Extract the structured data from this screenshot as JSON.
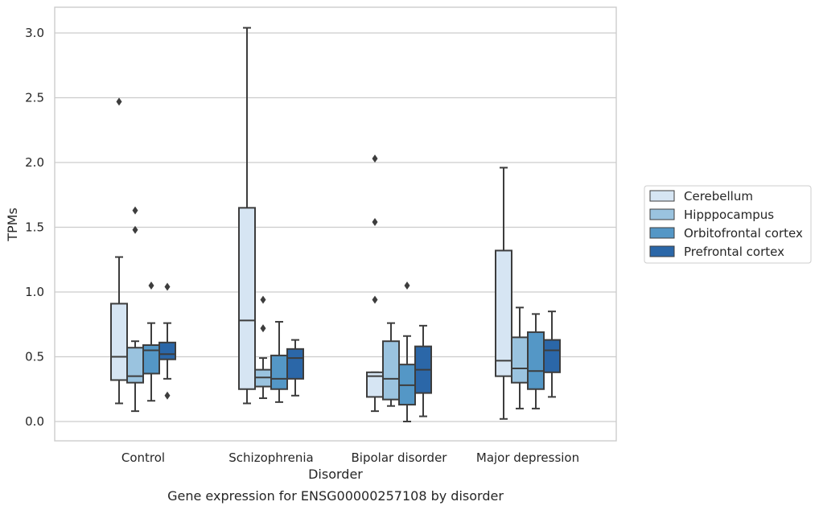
{
  "chart_data": {
    "type": "boxplot",
    "caption": "Gene expression for ENSG00000257108 by disorder",
    "xlabel": "Disorder",
    "ylabel": "TPMs",
    "ylim": [
      -0.15,
      3.2
    ],
    "yticks": [
      "0.0",
      "0.5",
      "1.0",
      "1.5",
      "2.0",
      "2.5",
      "3.0"
    ],
    "grid": "horizontal",
    "legend_position": "right",
    "categories": [
      "Control",
      "Schizophrenia",
      "Bipolar disorder",
      "Major depression"
    ],
    "series": [
      {
        "name": "Cerebellum",
        "color": "#d6e5f3",
        "boxes": [
          {
            "whisker_low": 0.14,
            "q1": 0.32,
            "median": 0.5,
            "q3": 0.91,
            "whisker_high": 1.27,
            "outliers": [
              2.47
            ]
          },
          {
            "whisker_low": 0.14,
            "q1": 0.25,
            "median": 0.78,
            "q3": 1.65,
            "whisker_high": 3.04,
            "outliers": []
          },
          {
            "whisker_low": 0.08,
            "q1": 0.19,
            "median": 0.35,
            "q3": 0.38,
            "whisker_high": 0.38,
            "outliers": [
              0.94,
              1.54,
              2.03
            ]
          },
          {
            "whisker_low": 0.02,
            "q1": 0.35,
            "median": 0.47,
            "q3": 1.32,
            "whisker_high": 1.96,
            "outliers": []
          }
        ]
      },
      {
        "name": "Hipppocampus",
        "color": "#9ac3df",
        "boxes": [
          {
            "whisker_low": 0.08,
            "q1": 0.3,
            "median": 0.35,
            "q3": 0.57,
            "whisker_high": 0.62,
            "outliers": [
              1.48,
              1.63
            ]
          },
          {
            "whisker_low": 0.18,
            "q1": 0.27,
            "median": 0.34,
            "q3": 0.4,
            "whisker_high": 0.49,
            "outliers": [
              0.72,
              0.94
            ]
          },
          {
            "whisker_low": 0.12,
            "q1": 0.17,
            "median": 0.33,
            "q3": 0.62,
            "whisker_high": 0.76,
            "outliers": []
          },
          {
            "whisker_low": 0.1,
            "q1": 0.3,
            "median": 0.41,
            "q3": 0.65,
            "whisker_high": 0.88,
            "outliers": []
          }
        ]
      },
      {
        "name": "Orbitofrontal cortex",
        "color": "#5497c6",
        "boxes": [
          {
            "whisker_low": 0.16,
            "q1": 0.37,
            "median": 0.55,
            "q3": 0.59,
            "whisker_high": 0.76,
            "outliers": [
              1.05
            ]
          },
          {
            "whisker_low": 0.15,
            "q1": 0.25,
            "median": 0.33,
            "q3": 0.51,
            "whisker_high": 0.77,
            "outliers": []
          },
          {
            "whisker_low": 0.0,
            "q1": 0.13,
            "median": 0.28,
            "q3": 0.44,
            "whisker_high": 0.66,
            "outliers": [
              1.05
            ]
          },
          {
            "whisker_low": 0.1,
            "q1": 0.25,
            "median": 0.39,
            "q3": 0.69,
            "whisker_high": 0.83,
            "outliers": []
          }
        ]
      },
      {
        "name": "Prefrontal cortex",
        "color": "#2b67a8",
        "boxes": [
          {
            "whisker_low": 0.33,
            "q1": 0.48,
            "median": 0.52,
            "q3": 0.61,
            "whisker_high": 0.76,
            "outliers": [
              0.2,
              1.04
            ]
          },
          {
            "whisker_low": 0.2,
            "q1": 0.33,
            "median": 0.49,
            "q3": 0.56,
            "whisker_high": 0.63,
            "outliers": []
          },
          {
            "whisker_low": 0.04,
            "q1": 0.22,
            "median": 0.4,
            "q3": 0.58,
            "whisker_high": 0.74,
            "outliers": []
          },
          {
            "whisker_low": 0.19,
            "q1": 0.38,
            "median": 0.55,
            "q3": 0.63,
            "whisker_high": 0.85,
            "outliers": []
          }
        ]
      }
    ]
  }
}
